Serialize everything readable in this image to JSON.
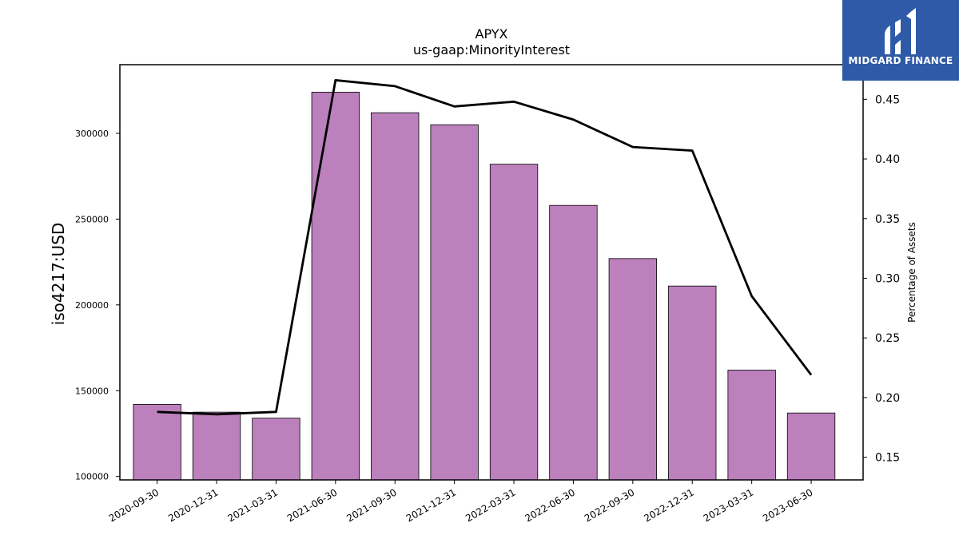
{
  "chart_data": {
    "type": "bar",
    "title": "APYX",
    "subtitle": "us-gaap:MinorityInterest",
    "ylabel": "iso4217:USD",
    "y2label": "Percentage of Assets",
    "categories": [
      "2020-09-30",
      "2020-12-31",
      "2021-03-31",
      "2021-06-30",
      "2021-09-30",
      "2021-12-31",
      "2022-03-31",
      "2022-06-30",
      "2022-09-30",
      "2022-12-31",
      "2023-03-31",
      "2023-06-30"
    ],
    "series": [
      {
        "values": [
          142000,
          137500,
          134000,
          324000,
          312000,
          305000,
          282000,
          258000,
          227000,
          211000,
          162000,
          137000
        ],
        "color": "#bc80bd",
        "type": "bar"
      },
      {
        "values": [
          0.188,
          0.186,
          0.188,
          0.466,
          0.461,
          0.444,
          0.448,
          0.433,
          0.41,
          0.407,
          0.285,
          0.219
        ],
        "color": "#000000",
        "type": "line",
        "axis": "right"
      }
    ],
    "ylim": [
      98000,
      340000
    ],
    "y_ticks": [
      100000,
      150000,
      200000,
      250000,
      300000
    ],
    "y2lim": [
      0.131,
      0.479
    ],
    "y2_ticks": [
      0.15,
      0.2,
      0.25,
      0.3,
      0.35,
      0.4,
      0.45
    ]
  },
  "logo": {
    "text": "MIDGARD FINANCE"
  }
}
